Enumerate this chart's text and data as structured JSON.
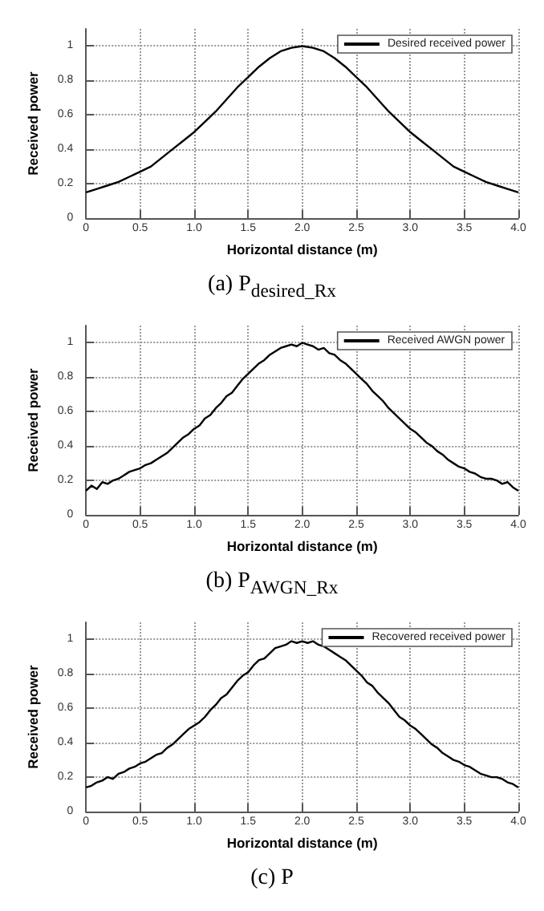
{
  "chart_data": [
    {
      "type": "line",
      "title": "(a)  P$_{desired_Rx}$",
      "xlabel": "Horizontal distance (m)",
      "ylabel": "Received power",
      "legend": "top right",
      "grid": true,
      "marker": "none",
      "line_style": "solid",
      "xlim": [
        0,
        4
      ],
      "ylim": [
        0,
        1.1
      ],
      "xticks": [
        0,
        0.5,
        {
          "value": 1,
          "label": "1.0"
        },
        1.5,
        {
          "value": 2,
          "label": "2.0"
        },
        2.5,
        {
          "value": 3,
          "label": "3.0"
        },
        3.5,
        {
          "value": 4,
          "label": "4.0"
        }
      ],
      "yticks": [
        0,
        0.2,
        0.4,
        0.6,
        0.8,
        1
      ],
      "x": [
        0,
        0.1,
        0.2,
        0.3,
        0.4,
        0.5,
        0.6,
        0.7,
        0.8,
        0.9,
        1,
        1.1,
        1.2,
        1.3,
        1.4,
        1.5,
        1.6,
        1.7,
        1.8,
        1.9,
        2,
        2.1,
        2.2,
        2.3,
        2.4,
        2.5,
        2.6,
        2.7,
        2.8,
        2.9,
        3,
        3.1,
        3.2,
        3.3,
        3.4,
        3.5,
        3.6,
        3.7,
        3.8,
        3.9,
        4
      ],
      "series": [
        {
          "name": "Desired received power",
          "color": "#000000",
          "values": [
            0.15,
            0.17,
            0.19,
            0.21,
            0.24,
            0.27,
            0.3,
            0.35,
            0.4,
            0.45,
            0.5,
            0.56,
            0.62,
            0.69,
            0.76,
            0.82,
            0.88,
            0.93,
            0.97,
            0.99,
            1.0,
            0.99,
            0.97,
            0.93,
            0.88,
            0.82,
            0.76,
            0.69,
            0.62,
            0.56,
            0.5,
            0.45,
            0.4,
            0.35,
            0.3,
            0.27,
            0.24,
            0.21,
            0.19,
            0.17,
            0.15
          ]
        }
      ]
    },
    {
      "type": "line",
      "title": "(b)  P$_{AWGN_Rx}$",
      "xlabel": "Horizontal distance (m)",
      "ylabel": "Received power",
      "legend": "top right",
      "grid": true,
      "marker": "none",
      "line_style": "solid",
      "xlim": [
        0,
        4
      ],
      "ylim": [
        0,
        1.1
      ],
      "xticks": [
        0,
        0.5,
        {
          "value": 1,
          "label": "1.0"
        },
        1.5,
        {
          "value": 2,
          "label": "2.0"
        },
        2.5,
        {
          "value": 3,
          "label": "3.0"
        },
        3.5,
        {
          "value": 4,
          "label": "4.0"
        }
      ],
      "yticks": [
        0,
        0.2,
        0.4,
        0.6,
        0.8,
        1
      ],
      "x": [
        0,
        0.05,
        0.1,
        0.15,
        0.2,
        0.25,
        0.3,
        0.35,
        0.4,
        0.45,
        0.5,
        0.55,
        0.6,
        0.65,
        0.7,
        0.75,
        0.8,
        0.85,
        0.9,
        0.95,
        1,
        1.05,
        1.1,
        1.15,
        1.2,
        1.25,
        1.3,
        1.35,
        1.4,
        1.45,
        1.5,
        1.55,
        1.6,
        1.65,
        1.7,
        1.75,
        1.8,
        1.85,
        1.9,
        1.95,
        2,
        2.05,
        2.1,
        2.15,
        2.2,
        2.25,
        2.3,
        2.35,
        2.4,
        2.45,
        2.5,
        2.55,
        2.6,
        2.65,
        2.7,
        2.75,
        2.8,
        2.85,
        2.9,
        2.95,
        3,
        3.05,
        3.1,
        3.15,
        3.2,
        3.25,
        3.3,
        3.35,
        3.4,
        3.45,
        3.5,
        3.55,
        3.6,
        3.65,
        3.7,
        3.75,
        3.8,
        3.85,
        3.9,
        3.95,
        4
      ],
      "series": [
        {
          "name": "Received AWGN power",
          "color": "#000000",
          "values": [
            0.14,
            0.17,
            0.15,
            0.19,
            0.18,
            0.2,
            0.21,
            0.23,
            0.25,
            0.26,
            0.27,
            0.29,
            0.3,
            0.32,
            0.34,
            0.36,
            0.39,
            0.42,
            0.45,
            0.47,
            0.5,
            0.52,
            0.56,
            0.58,
            0.62,
            0.65,
            0.69,
            0.71,
            0.75,
            0.79,
            0.82,
            0.85,
            0.88,
            0.9,
            0.93,
            0.95,
            0.97,
            0.98,
            0.99,
            0.98,
            1.0,
            0.99,
            0.98,
            0.96,
            0.97,
            0.94,
            0.93,
            0.9,
            0.88,
            0.85,
            0.82,
            0.79,
            0.76,
            0.72,
            0.69,
            0.66,
            0.62,
            0.59,
            0.56,
            0.53,
            0.5,
            0.48,
            0.45,
            0.42,
            0.4,
            0.37,
            0.35,
            0.32,
            0.3,
            0.28,
            0.27,
            0.25,
            0.24,
            0.22,
            0.21,
            0.21,
            0.2,
            0.18,
            0.19,
            0.16,
            0.14
          ]
        }
      ]
    },
    {
      "type": "line",
      "title": "(c)  P",
      "xlabel": "Horizontal distance (m)",
      "ylabel": "Received power",
      "legend": "top right",
      "grid": true,
      "marker": "none",
      "line_style": "solid",
      "xlim": [
        0,
        4
      ],
      "ylim": [
        0,
        1.1
      ],
      "xticks": [
        0,
        0.5,
        {
          "value": 1,
          "label": "1.0"
        },
        1.5,
        {
          "value": 2,
          "label": "2.0"
        },
        2.5,
        {
          "value": 3,
          "label": "3.0"
        },
        3.5,
        {
          "value": 4,
          "label": "4.0"
        }
      ],
      "yticks": [
        0,
        0.2,
        0.4,
        0.6,
        0.8,
        1
      ],
      "x": [
        0,
        0.05,
        0.1,
        0.15,
        0.2,
        0.25,
        0.3,
        0.35,
        0.4,
        0.45,
        0.5,
        0.55,
        0.6,
        0.65,
        0.7,
        0.75,
        0.8,
        0.85,
        0.9,
        0.95,
        1,
        1.05,
        1.1,
        1.15,
        1.2,
        1.25,
        1.3,
        1.35,
        1.4,
        1.45,
        1.5,
        1.55,
        1.6,
        1.65,
        1.7,
        1.75,
        1.8,
        1.85,
        1.9,
        1.95,
        2,
        2.05,
        2.1,
        2.15,
        2.2,
        2.25,
        2.3,
        2.35,
        2.4,
        2.45,
        2.5,
        2.55,
        2.6,
        2.65,
        2.7,
        2.75,
        2.8,
        2.85,
        2.9,
        2.95,
        3,
        3.05,
        3.1,
        3.15,
        3.2,
        3.25,
        3.3,
        3.35,
        3.4,
        3.45,
        3.5,
        3.55,
        3.6,
        3.65,
        3.7,
        3.75,
        3.8,
        3.85,
        3.9,
        3.95,
        4
      ],
      "series": [
        {
          "name": "Recovered received power",
          "color": "#000000",
          "values": [
            0.14,
            0.15,
            0.17,
            0.18,
            0.2,
            0.19,
            0.22,
            0.23,
            0.25,
            0.26,
            0.28,
            0.29,
            0.31,
            0.33,
            0.34,
            0.37,
            0.39,
            0.42,
            0.45,
            0.48,
            0.5,
            0.52,
            0.55,
            0.59,
            0.62,
            0.66,
            0.68,
            0.72,
            0.76,
            0.79,
            0.81,
            0.85,
            0.88,
            0.89,
            0.92,
            0.95,
            0.96,
            0.97,
            0.99,
            0.98,
            0.99,
            0.98,
            0.99,
            0.97,
            0.96,
            0.94,
            0.92,
            0.9,
            0.88,
            0.85,
            0.82,
            0.79,
            0.75,
            0.73,
            0.69,
            0.66,
            0.63,
            0.59,
            0.55,
            0.53,
            0.5,
            0.48,
            0.45,
            0.42,
            0.39,
            0.37,
            0.34,
            0.32,
            0.3,
            0.29,
            0.27,
            0.26,
            0.24,
            0.22,
            0.21,
            0.2,
            0.2,
            0.19,
            0.17,
            0.16,
            0.14
          ]
        }
      ]
    }
  ]
}
